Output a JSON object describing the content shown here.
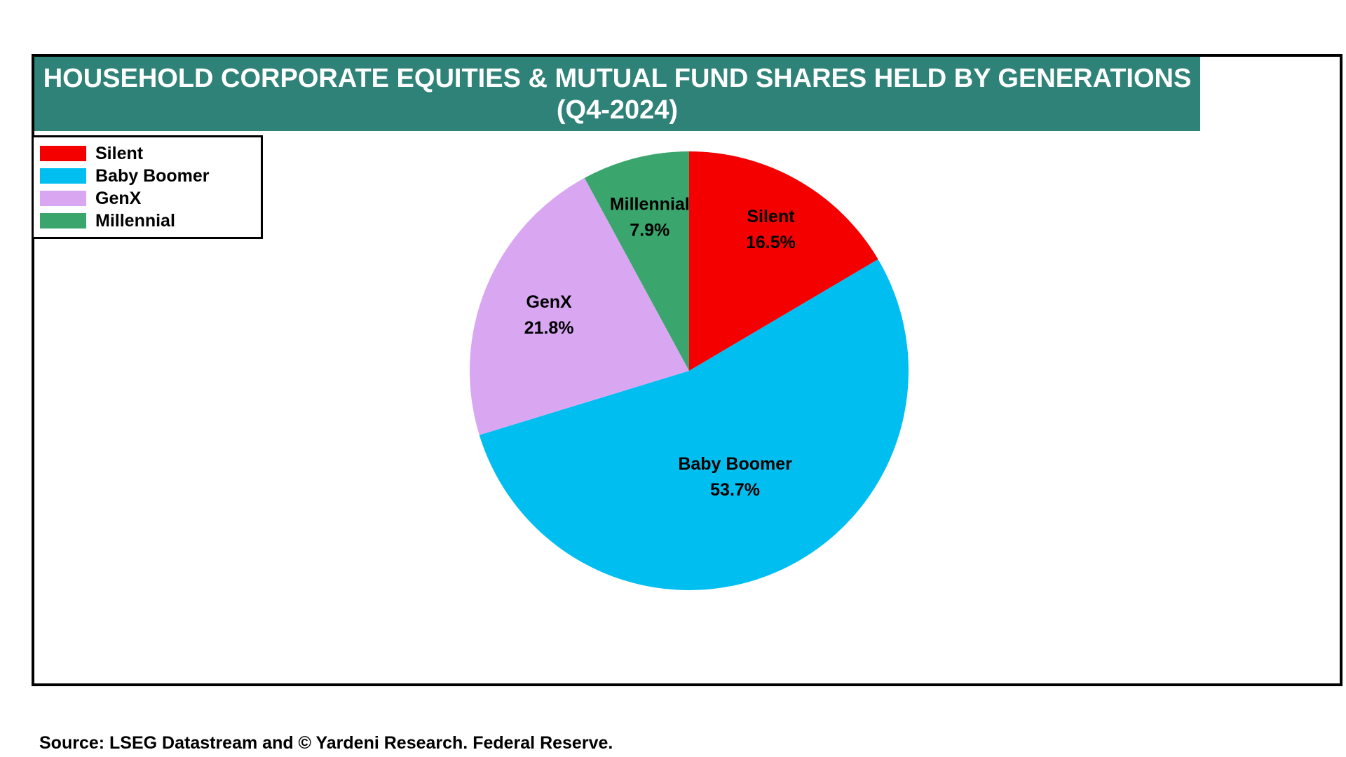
{
  "title": {
    "line1": "HOUSEHOLD CORPORATE EQUITIES & MUTUAL FUND SHARES HELD BY GENERATIONS",
    "line2": "(Q4-2024)"
  },
  "source": "Source: LSEG Datastream and © Yardeni Research. Federal Reserve.",
  "colors": {
    "title_bar": "#2F8277",
    "silent": "#F40000",
    "baby_boomer": "#00BFF0",
    "genx": "#D9A7F2",
    "millennial": "#3AA66D"
  },
  "legend": {
    "items": [
      {
        "label": "Silent",
        "color": "#F40000"
      },
      {
        "label": "Baby Boomer",
        "color": "#00BFF0"
      },
      {
        "label": "GenX",
        "color": "#D9A7F2"
      },
      {
        "label": "Millennial",
        "color": "#3AA66D"
      }
    ]
  },
  "chart_data": {
    "type": "pie",
    "title": "HOUSEHOLD CORPORATE EQUITIES & MUTUAL FUND SHARES HELD BY GENERATIONS (Q4-2024)",
    "categories": [
      "Silent",
      "Baby Boomer",
      "GenX",
      "Millennial"
    ],
    "values": [
      16.5,
      53.7,
      21.8,
      7.9
    ],
    "colors": [
      "#F40000",
      "#00BFF0",
      "#D9A7F2",
      "#3AA66D"
    ],
    "slice_labels": [
      {
        "name": "Silent",
        "percent": "16.5%"
      },
      {
        "name": "Baby Boomer",
        "percent": "53.7%"
      },
      {
        "name": "GenX",
        "percent": "21.8%"
      },
      {
        "name": "Millennial",
        "percent": "7.9%"
      }
    ],
    "start_angle_deg": 0,
    "direction": "clockwise",
    "legend_position": "top-left",
    "label_radius_fractions": [
      0.75,
      0.52,
      0.69,
      0.73
    ],
    "labels_format": "name + percent"
  }
}
